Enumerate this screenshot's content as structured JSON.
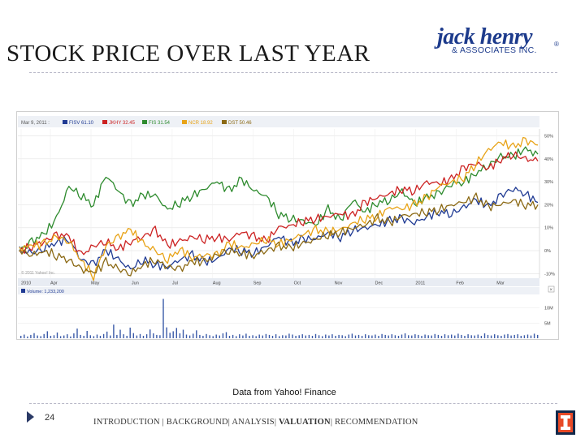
{
  "slide": {
    "title": "STOCK PRICE OVER LAST YEAR",
    "source": "Data from Yahoo! Finance",
    "page_number": "24"
  },
  "logo": {
    "main": "jack henry",
    "sub": "& ASSOCIATES INC.",
    "reg": "®"
  },
  "footer": {
    "items": [
      "INTRODUCTION",
      "BACKGROUND",
      "ANALYSIS",
      "VALUATION",
      "RECOMMENDATION"
    ],
    "separators": [
      " | ",
      "| ",
      "| ",
      "| "
    ],
    "active_index": 3
  },
  "chart_data": {
    "type": "line",
    "header": {
      "date": "Mar 9, 2011 :",
      "legend": [
        {
          "name": "FISV 61.10",
          "color": "#1f3a93"
        },
        {
          "name": "JKHY 32.45",
          "color": "#cc2222"
        },
        {
          "name": "FIS 31.54",
          "color": "#2e8b2e"
        },
        {
          "name": "NCR 18.92",
          "color": "#e8a317"
        },
        {
          "name": "DST 50.46",
          "color": "#8b6914"
        }
      ]
    },
    "x_labels": [
      "2010",
      "Apr",
      "May",
      "Jun",
      "Jul",
      "Aug",
      "Sep",
      "Oct",
      "Nov",
      "Dec",
      "2011",
      "Feb",
      "Mar"
    ],
    "x_label_idx": [
      0.0,
      0.65,
      1.55,
      2.45,
      3.35,
      4.25,
      5.15,
      6.05,
      6.95,
      7.85,
      8.75,
      9.65,
      10.55
    ],
    "y_ticks": [
      "50%",
      "40%",
      "30%",
      "20%",
      "10%",
      "0%",
      "-10%"
    ],
    "y_tick_vals": [
      50,
      40,
      30,
      20,
      10,
      0,
      -10
    ],
    "ylim": [
      -12,
      53
    ],
    "watermark": "© 2011 Yahoo! Inc.",
    "series": [
      {
        "name": "FIS",
        "color": "#2e8b2e",
        "values": [
          0,
          4,
          7,
          14,
          28,
          24,
          20,
          33,
          26,
          20,
          24,
          24,
          18,
          21,
          24,
          27,
          30,
          26,
          31,
          26,
          24,
          16,
          14,
          13,
          11,
          18,
          13,
          22,
          17,
          21,
          22,
          26,
          20,
          23,
          25,
          29,
          30,
          34,
          37,
          41,
          41,
          44,
          42
        ]
      },
      {
        "name": "FISV",
        "color": "#1f3a93",
        "values": [
          0,
          -1,
          1,
          4,
          5,
          -4,
          -6,
          0,
          -4,
          -8,
          -4,
          -6,
          -7,
          -4,
          -2,
          -5,
          -4,
          1,
          0,
          -1,
          2,
          6,
          3,
          5,
          5,
          8,
          6,
          9,
          10,
          11,
          13,
          14,
          12,
          15,
          17,
          16,
          19,
          22,
          19,
          24,
          27,
          25,
          21
        ]
      },
      {
        "name": "JKHY",
        "color": "#cc2222",
        "values": [
          0,
          2,
          4,
          7,
          6,
          -2,
          2,
          4,
          1,
          4,
          6,
          9,
          2,
          4,
          6,
          5,
          6,
          5,
          8,
          6,
          4,
          10,
          11,
          13,
          14,
          15,
          16,
          15,
          21,
          23,
          25,
          27,
          26,
          30,
          29,
          31,
          36,
          38,
          36,
          40,
          42,
          40,
          39
        ]
      },
      {
        "name": "NCR",
        "color": "#e8a317",
        "values": [
          1,
          2,
          3,
          6,
          4,
          -4,
          -11,
          2,
          6,
          9,
          3,
          0,
          -4,
          1,
          -3,
          -2,
          -2,
          3,
          1,
          3,
          5,
          3,
          5,
          7,
          9,
          8,
          9,
          12,
          14,
          15,
          19,
          18,
          20,
          23,
          28,
          30,
          32,
          38,
          44,
          47,
          45,
          48,
          46
        ]
      },
      {
        "name": "DST",
        "color": "#8b6914",
        "values": [
          0,
          -2,
          0,
          -2,
          -4,
          -8,
          -10,
          -5,
          -8,
          -10,
          -6,
          -4,
          -7,
          -8,
          -5,
          -5,
          -2,
          0,
          -1,
          -2,
          0,
          2,
          1,
          3,
          5,
          7,
          8,
          10,
          11,
          14,
          12,
          15,
          16,
          17,
          18,
          20,
          21,
          23,
          19,
          20,
          22,
          20,
          20
        ]
      }
    ],
    "volume": {
      "label": "Volume: 1,233,200",
      "y_ticks": [
        "10M",
        "5M"
      ],
      "y_tick_vals": [
        10,
        5
      ],
      "ylim": [
        0,
        15
      ],
      "values": [
        0.8,
        1.2,
        0.6,
        1.1,
        1.7,
        0.9,
        0.7,
        1.4,
        2.3,
        0.8,
        1.0,
        1.9,
        0.7,
        0.9,
        1.3,
        0.6,
        1.6,
        3.2,
        1.1,
        0.8,
        2.4,
        1.0,
        0.7,
        1.2,
        0.8,
        1.4,
        2.2,
        0.9,
        4.5,
        1.1,
        2.8,
        1.3,
        0.8,
        3.5,
        1.7,
        0.9,
        1.4,
        0.8,
        1.3,
        2.9,
        1.6,
        1.1,
        1.0,
        13.0,
        3.6,
        1.8,
        2.3,
        3.4,
        1.6,
        2.8,
        1.2,
        0.9,
        1.5,
        2.6,
        1.1,
        0.8,
        1.4,
        1.0,
        0.7,
        1.2,
        0.9,
        1.6,
        2.0,
        0.8,
        1.1,
        0.7,
        1.3,
        0.9,
        1.5,
        0.8,
        1.0,
        0.7,
        1.2,
        0.9,
        1.4,
        1.1,
        0.8,
        1.3,
        0.7,
        1.0,
        0.9,
        1.5,
        1.2,
        0.8,
        1.0,
        1.3,
        0.9,
        1.1,
        0.8,
        1.4,
        1.0,
        0.7,
        1.2,
        0.9,
        1.3,
        0.8,
        1.1,
        1.0,
        0.7,
        1.2,
        1.5,
        0.9,
        1.1,
        0.8,
        1.3,
        1.0,
        0.9,
        1.2,
        0.8,
        1.4,
        1.1,
        0.9,
        1.3,
        1.0,
        0.8,
        1.2,
        1.6,
        1.0,
        0.9,
        1.3,
        1.1,
        0.8,
        1.2,
        1.0,
        0.9,
        1.4,
        1.1,
        0.8,
        1.3,
        1.0,
        1.2,
        0.9,
        1.5,
        1.1,
        0.8,
        1.3,
        1.0,
        0.9,
        1.2,
        0.8,
        1.6,
        1.1,
        0.9,
        1.3,
        1.0,
        0.8,
        1.2,
        1.4,
        0.9,
        1.1,
        1.3,
        0.8,
        1.0,
        1.2,
        0.9,
        1.5,
        1.1
      ]
    }
  }
}
